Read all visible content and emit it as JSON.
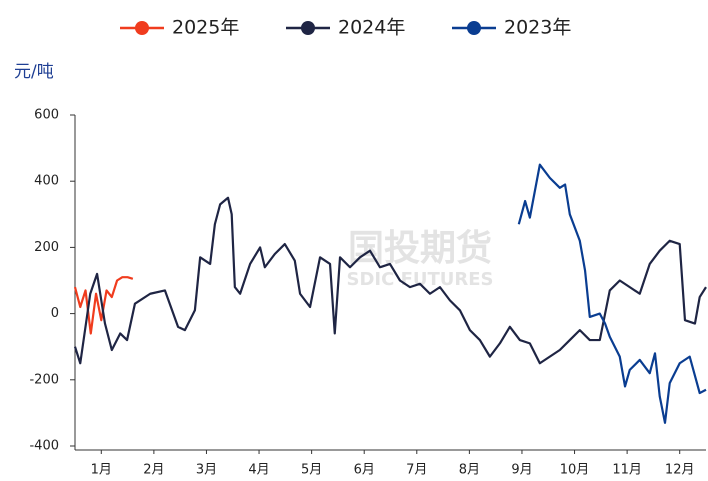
{
  "chart_data": {
    "type": "line",
    "y_label": "元/吨",
    "watermark": "国投期货",
    "watermark_sub": "SDIC FUTURES",
    "xlim": [
      0,
      12
    ],
    "xticks": [
      {
        "value": 0.5,
        "label": "1月"
      },
      {
        "value": 1.5,
        "label": "2月"
      },
      {
        "value": 2.5,
        "label": "3月"
      },
      {
        "value": 3.5,
        "label": "4月"
      },
      {
        "value": 4.5,
        "label": "5月"
      },
      {
        "value": 5.5,
        "label": "6月"
      },
      {
        "value": 6.5,
        "label": "7月"
      },
      {
        "value": 7.5,
        "label": "8月"
      },
      {
        "value": 8.5,
        "label": "9月"
      },
      {
        "value": 9.5,
        "label": "10月"
      },
      {
        "value": 10.5,
        "label": "11月"
      },
      {
        "value": 11.5,
        "label": "12月"
      }
    ],
    "ylim": [
      -400,
      600
    ],
    "yticks": [
      -400,
      -200,
      0,
      200,
      400,
      600
    ],
    "series": [
      {
        "name": "2025年",
        "color": "#f03c1e",
        "x": [
          0,
          0.1,
          0.2,
          0.3,
          0.4,
          0.5,
          0.6,
          0.7,
          0.8,
          0.9,
          1.0,
          1.1
        ],
        "values": [
          80,
          20,
          70,
          -60,
          60,
          -20,
          70,
          50,
          100,
          110,
          110,
          105
        ]
      },
      {
        "name": "2024年",
        "color": "#1f2544",
        "x": [
          0,
          0.1,
          0.29,
          0.42,
          0.57,
          0.7,
          0.86,
          0.99,
          1.14,
          1.43,
          1.71,
          1.96,
          2.09,
          2.28,
          2.38,
          2.57,
          2.66,
          2.76,
          2.91,
          2.98,
          3.04,
          3.14,
          3.33,
          3.52,
          3.61,
          3.8,
          3.99,
          4.18,
          4.28,
          4.47,
          4.66,
          4.85,
          4.94,
          5.04,
          5.23,
          5.42,
          5.61,
          5.8,
          5.99,
          6.18,
          6.37,
          6.56,
          6.75,
          6.94,
          7.13,
          7.32,
          7.51,
          7.7,
          7.89,
          8.08,
          8.27,
          8.46,
          8.65,
          8.84,
          9.03,
          9.22,
          9.41,
          9.6,
          9.79,
          9.98,
          10.17,
          10.36,
          10.55,
          10.74,
          10.93,
          11.12,
          11.31,
          11.5,
          11.6,
          11.79,
          11.88,
          12
        ],
        "values": [
          -100,
          -150,
          60,
          120,
          -30,
          -110,
          -60,
          -80,
          30,
          60,
          70,
          -40,
          -50,
          10,
          170,
          150,
          270,
          330,
          350,
          300,
          80,
          60,
          150,
          200,
          140,
          180,
          210,
          160,
          60,
          20,
          170,
          150,
          -60,
          170,
          140,
          170,
          190,
          140,
          150,
          100,
          80,
          90,
          60,
          80,
          40,
          10,
          -50,
          -80,
          -130,
          -90,
          -40,
          -80,
          -90,
          -150,
          -130,
          -110,
          -80,
          -50,
          -80,
          -80,
          70,
          100,
          80,
          60,
          150,
          190,
          220,
          210,
          -20,
          -30,
          50,
          80
        ]
      },
      {
        "name": "2023年",
        "color": "#0a3d91",
        "x": [
          8.44,
          8.56,
          8.65,
          8.84,
          9.03,
          9.22,
          9.32,
          9.41,
          9.6,
          9.7,
          9.79,
          9.98,
          10.08,
          10.17,
          10.36,
          10.46,
          10.55,
          10.74,
          10.93,
          11.03,
          11.12,
          11.22,
          11.31,
          11.5,
          11.69,
          11.88,
          12
        ],
        "values": [
          270,
          340,
          290,
          450,
          410,
          380,
          390,
          300,
          220,
          130,
          -10,
          0,
          -30,
          -70,
          -130,
          -220,
          -170,
          -140,
          -180,
          -120,
          -250,
          -330,
          -210,
          -150,
          -130,
          -240,
          -230
        ]
      }
    ]
  }
}
